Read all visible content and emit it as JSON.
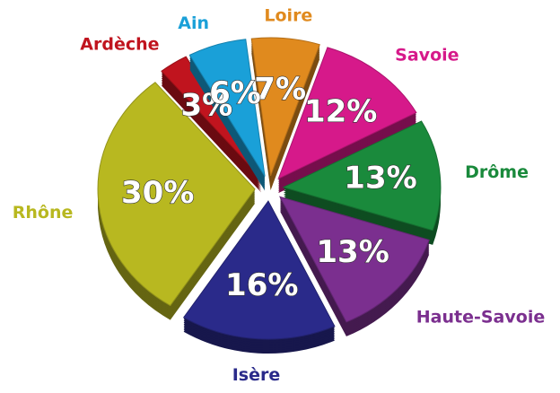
{
  "chart_data": {
    "type": "pie",
    "categories": [
      "Loire",
      "Savoie",
      "Drôme",
      "Haute-Savoie",
      "Isère",
      "Rhône",
      "Ardèche",
      "Ain"
    ],
    "values": [
      7,
      12,
      13,
      13,
      16,
      30,
      3,
      6
    ],
    "value_labels": [
      "7%",
      "12%",
      "13%",
      "13%",
      "16%",
      "30%",
      "3%",
      "6%"
    ],
    "colors": [
      "#e08a1e",
      "#d6198a",
      "#1a8a3c",
      "#7b2f8f",
      "#2a2a8a",
      "#b8b820",
      "#c0141e",
      "#1aa0d8"
    ]
  }
}
